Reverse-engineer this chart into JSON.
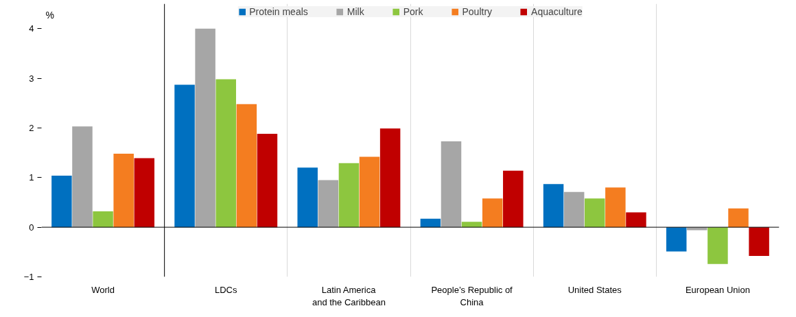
{
  "chart_data": {
    "type": "bar",
    "ylabel": "%",
    "categories": [
      "World",
      "LDCs",
      "Latin America\nand the Caribbean",
      "People’s Republic of\nChina",
      "United States",
      "European Union"
    ],
    "series": [
      {
        "name": "Protein meals",
        "color": "#0070c0",
        "values": [
          1.04,
          2.87,
          1.2,
          0.17,
          0.87,
          -0.49
        ]
      },
      {
        "name": "Milk",
        "color": "#a6a6a6",
        "values": [
          2.03,
          4.0,
          0.95,
          1.73,
          0.71,
          -0.06
        ]
      },
      {
        "name": "Pork",
        "color": "#8dc63f",
        "values": [
          0.32,
          2.98,
          1.29,
          0.11,
          0.58,
          -0.74
        ]
      },
      {
        "name": "Poultry",
        "color": "#f47d20",
        "values": [
          1.48,
          2.48,
          1.42,
          0.58,
          0.8,
          0.38
        ]
      },
      {
        "name": "Aquaculture",
        "color": "#c00000",
        "values": [
          1.39,
          1.88,
          1.99,
          1.14,
          0.3,
          -0.58
        ]
      }
    ],
    "ylim": [
      -1,
      4.5
    ],
    "yticks": [
      -1,
      0,
      1,
      2,
      3,
      4
    ],
    "grid": "x",
    "legend": "top",
    "ref_lines": [
      {
        "axis": "y",
        "value": 0,
        "color": "#000000"
      }
    ]
  }
}
